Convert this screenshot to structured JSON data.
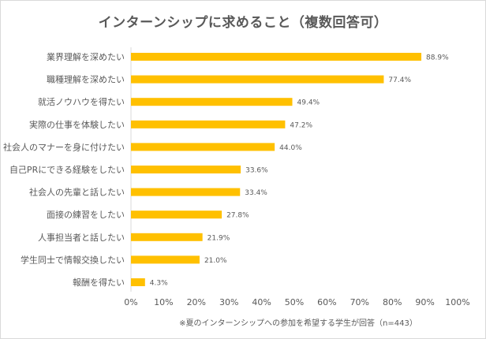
{
  "chart_data": {
    "type": "bar",
    "orientation": "horizontal",
    "title": "インターンシップに求めること（複数回答可）",
    "note": "※夏のインターンシップへの参加を希望する学生が回答（n=443）",
    "categories": [
      "業界理解を深めたい",
      "職種理解を深めたい",
      "就活ノウハウを得たい",
      "実際の仕事を体験したい",
      "社会人のマナーを身に付けたい",
      "自己PRにできる経験をしたい",
      "社会人の先輩と話したい",
      "面接の練習をしたい",
      "人事担当者と話したい",
      "学生同士で情報交換したい",
      "報酬を得たい"
    ],
    "values": [
      88.9,
      77.4,
      49.4,
      47.2,
      44.0,
      33.6,
      33.4,
      27.8,
      21.9,
      21.0,
      4.3
    ],
    "value_labels": [
      "88.9%",
      "77.4%",
      "49.4%",
      "47.2%",
      "44.0%",
      "33.6%",
      "33.4%",
      "27.8%",
      "21.9%",
      "21.0%",
      "4.3%"
    ],
    "xlim": [
      0,
      100
    ],
    "x_ticks": [
      "0%",
      "10%",
      "20%",
      "30%",
      "40%",
      "50%",
      "60%",
      "70%",
      "80%",
      "90%",
      "100%"
    ],
    "bar_color": "#ffc000",
    "grid": false,
    "legend": "none"
  }
}
